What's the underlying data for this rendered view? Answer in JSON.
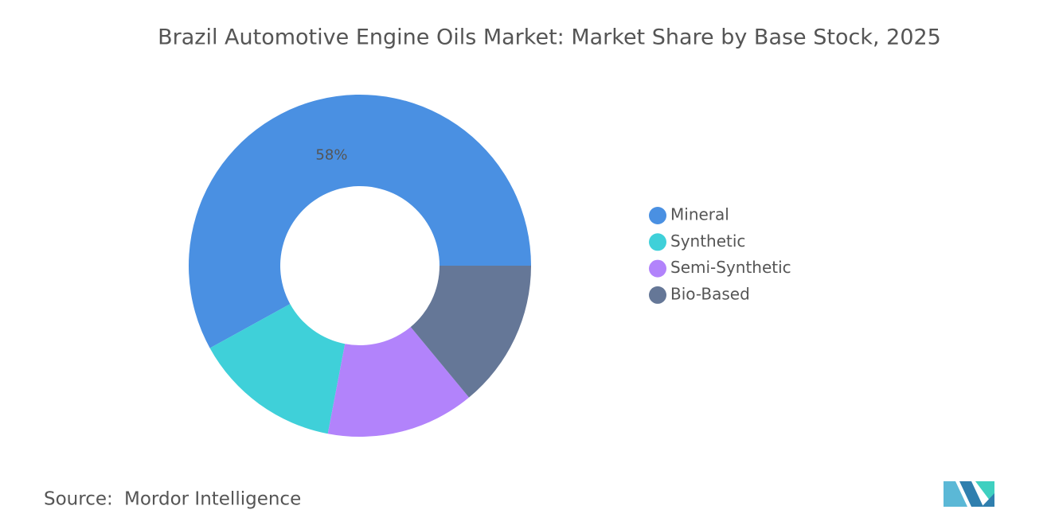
{
  "chart_data": {
    "type": "donut",
    "title": "Brazil Automotive Engine Oils Market: Market Share by Base Stock, 2025",
    "categories": [
      "Mineral",
      "Synthetic",
      "Semi-Synthetic",
      "Bio-Based"
    ],
    "values": [
      58,
      14,
      14,
      14
    ],
    "value_labels": [
      "58%",
      null,
      null,
      null
    ],
    "colors": [
      "#4a90e2",
      "#3fd0d9",
      "#b283fb",
      "#657797"
    ],
    "legend": "right"
  },
  "source": {
    "label": "Source:",
    "text": "Mordor Intelligence"
  }
}
